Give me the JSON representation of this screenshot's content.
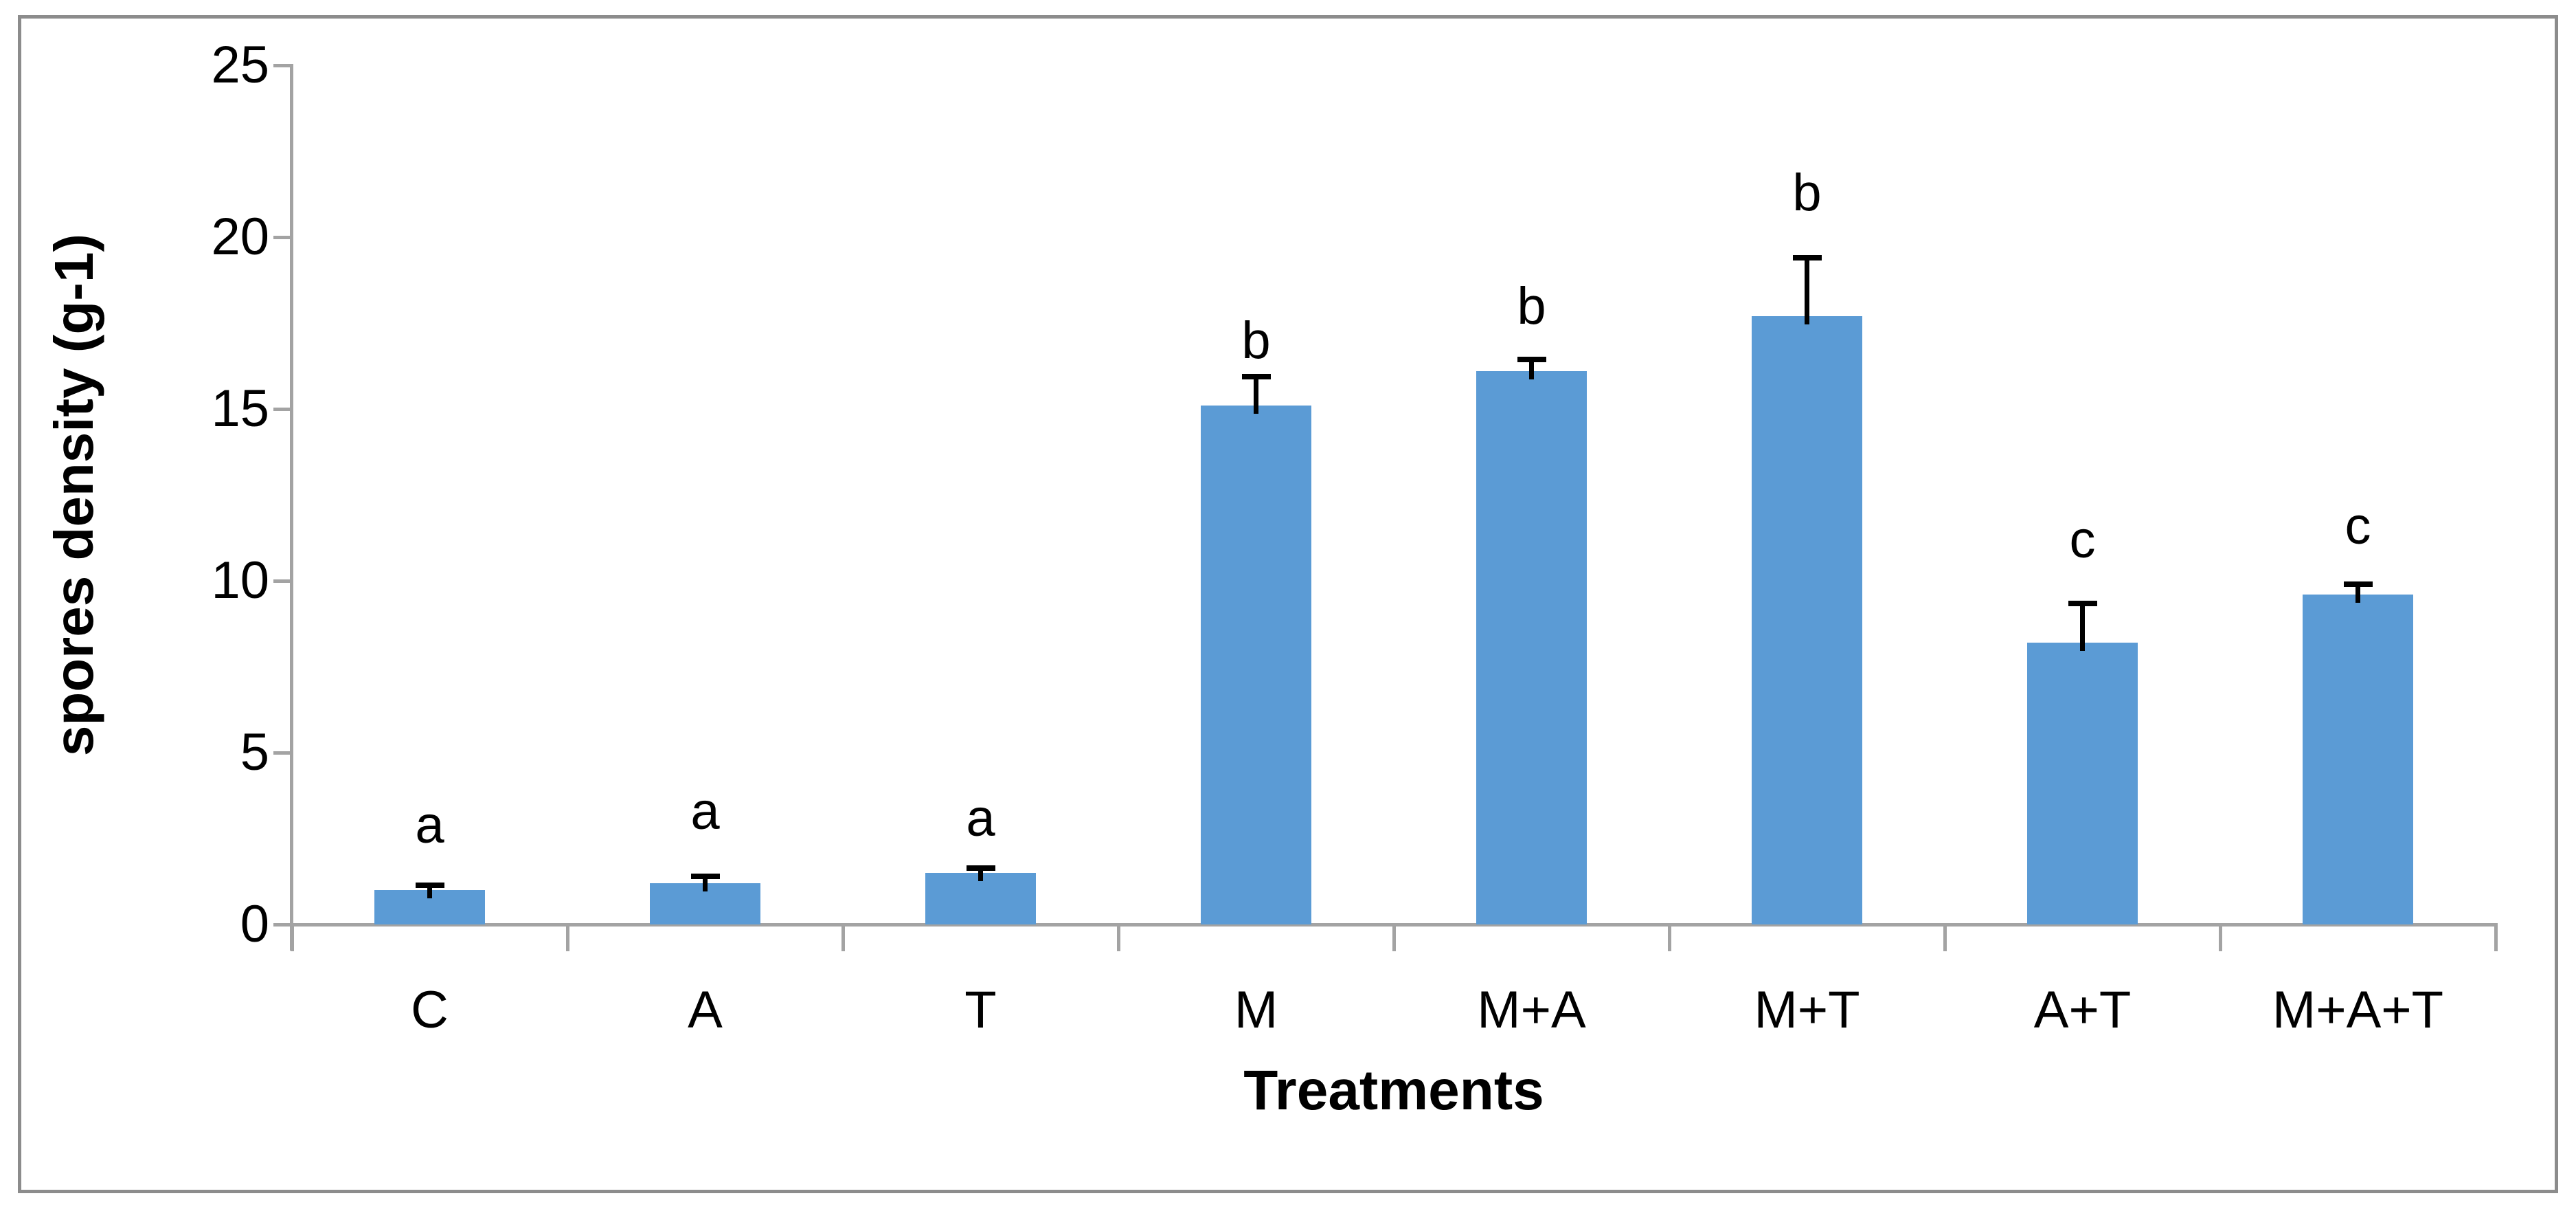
{
  "figure": {
    "background": "#ffffff",
    "border_color": "#8c8c8c"
  },
  "chart_data": {
    "type": "bar",
    "title": "",
    "xlabel": "Treatments",
    "ylabel": "spores density (g-1)",
    "categories": [
      "C",
      "A",
      "T",
      "M",
      "M+A",
      "M+T",
      "A+T",
      "M+A+T"
    ],
    "values": [
      1.0,
      1.2,
      1.5,
      15.1,
      16.1,
      17.7,
      8.2,
      9.6
    ],
    "errors_plus": [
      0.15,
      0.2,
      0.15,
      0.85,
      0.35,
      1.7,
      1.15,
      0.3
    ],
    "sig_letters": [
      "a",
      "a",
      "a",
      "b",
      "b",
      "b",
      "c",
      "c"
    ],
    "sig_letter_bottom_value": [
      2.2,
      2.6,
      2.4,
      16.3,
      17.3,
      20.6,
      10.5,
      10.9
    ],
    "ylim": [
      0,
      25
    ],
    "yticks": [
      0,
      5,
      10,
      15,
      20,
      25
    ],
    "bar_color": "#5b9bd5",
    "error_bar_color": "#000000",
    "axis_color": "#a3a3a3",
    "grid": false,
    "legend_position": "none"
  }
}
